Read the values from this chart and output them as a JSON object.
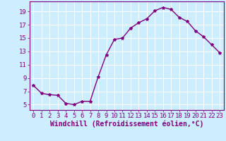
{
  "x": [
    0,
    1,
    2,
    3,
    4,
    5,
    6,
    7,
    8,
    9,
    10,
    11,
    12,
    13,
    14,
    15,
    16,
    17,
    18,
    19,
    20,
    21,
    22,
    23
  ],
  "y": [
    7.9,
    6.7,
    6.5,
    6.4,
    5.2,
    5.0,
    5.5,
    5.5,
    9.2,
    12.5,
    14.8,
    15.0,
    16.5,
    17.3,
    17.9,
    19.1,
    19.6,
    19.3,
    18.1,
    17.5,
    16.1,
    15.2,
    14.0,
    12.8
  ],
  "line_color": "#800080",
  "marker": "*",
  "marker_size": 3,
  "bg_color": "#cceeff",
  "grid_color": "#ffffff",
  "xlabel": "Windchill (Refroidissement éolien,°C)",
  "xlabel_color": "#800080",
  "tick_color": "#800080",
  "ytick_labels": [
    "5",
    "7",
    "9",
    "11",
    "13",
    "15",
    "17",
    "19"
  ],
  "yticks": [
    5,
    7,
    9,
    11,
    13,
    15,
    17,
    19
  ],
  "ylim": [
    4.2,
    20.5
  ],
  "xlim": [
    -0.5,
    23.5
  ],
  "xtick_labels": [
    "0",
    "1",
    "2",
    "3",
    "4",
    "5",
    "6",
    "7",
    "8",
    "9",
    "10",
    "11",
    "12",
    "13",
    "14",
    "15",
    "16",
    "17",
    "18",
    "19",
    "20",
    "21",
    "22",
    "23"
  ],
  "spine_color": "#800080",
  "tick_fontsize": 6.5,
  "xlabel_fontsize": 7,
  "linewidth": 1.0
}
